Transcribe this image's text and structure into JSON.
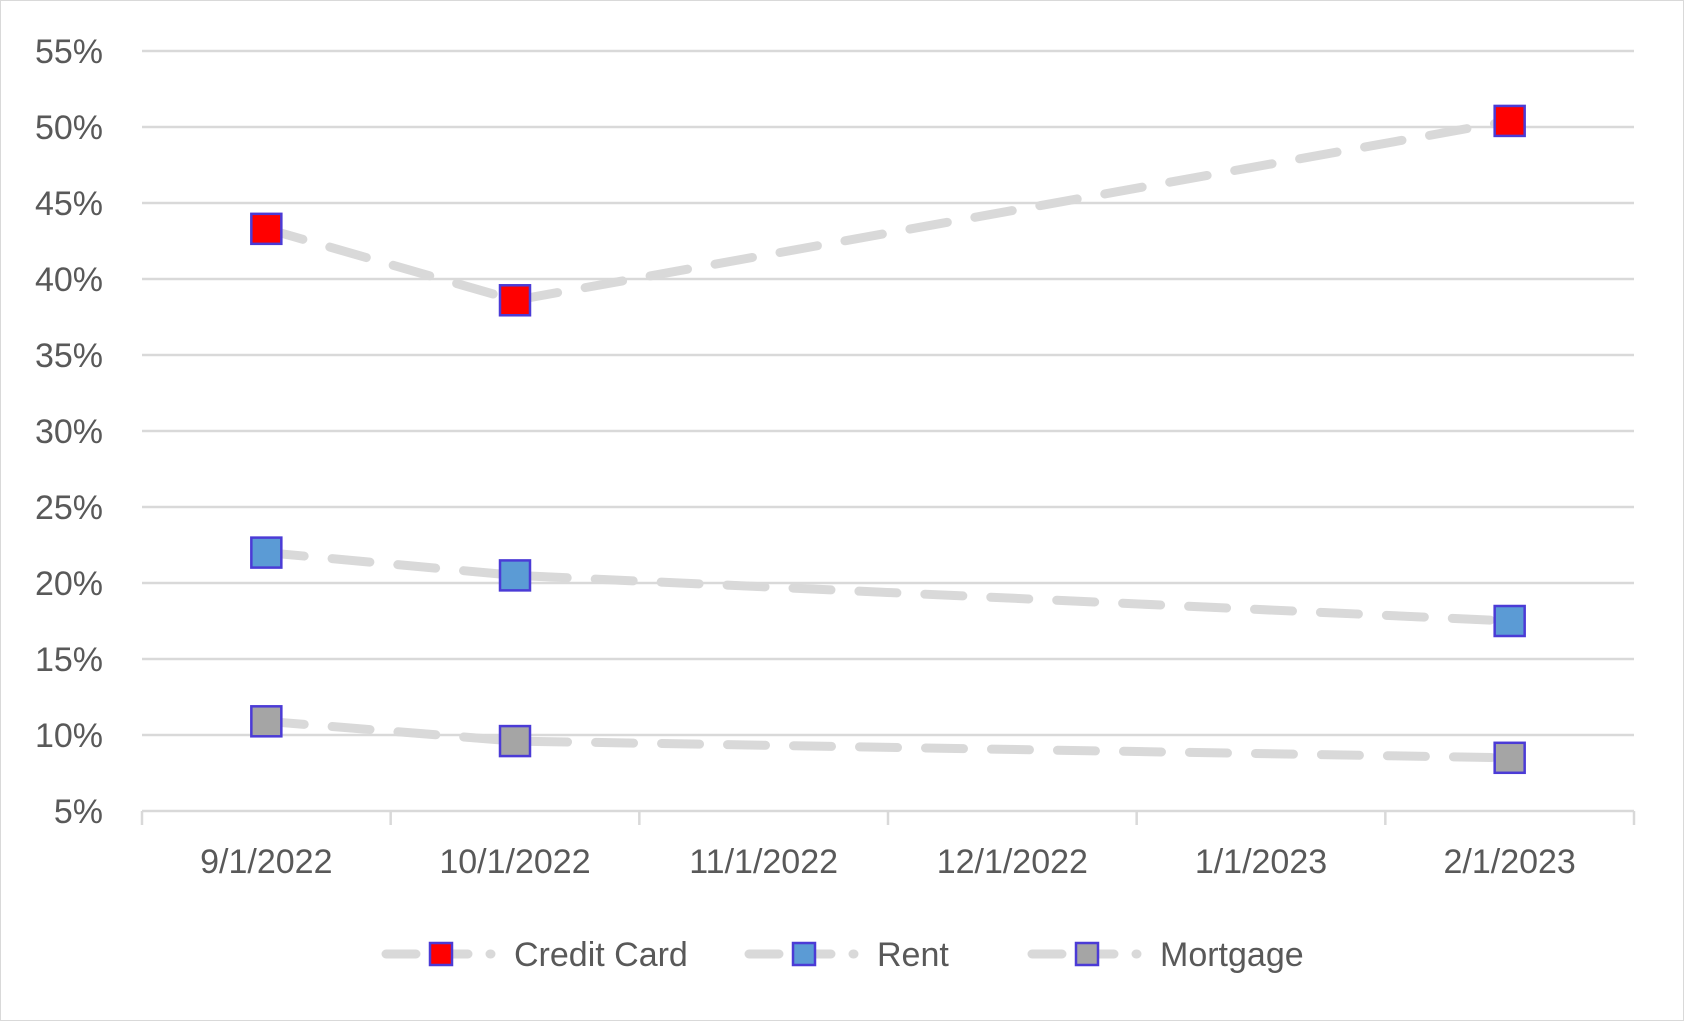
{
  "chart_data": {
    "type": "line",
    "x": [
      "9/1/2022",
      "10/1/2022",
      "2/1/2023"
    ],
    "x_axis_categories": [
      "9/1/2022",
      "10/1/2022",
      "11/1/2022",
      "12/1/2022",
      "1/1/2023",
      "2/1/2023"
    ],
    "y_tick_labels": [
      "5%",
      "10%",
      "15%",
      "20%",
      "25%",
      "30%",
      "35%",
      "40%",
      "45%",
      "50%",
      "55%"
    ],
    "ylim": [
      0.05,
      0.55
    ],
    "y_unit": "percent",
    "grid": true,
    "line_style": "dashed",
    "line_color": "#d9d9d9",
    "marker": "square",
    "marker_edge_color": "#4b3bd6",
    "legend_position": "bottom",
    "series": [
      {
        "name": "Credit Card",
        "color": "#ff0000",
        "values": [
          0.433,
          0.386,
          0.504
        ]
      },
      {
        "name": "Rent",
        "color": "#5b9bd5",
        "values": [
          0.22,
          0.205,
          0.175
        ]
      },
      {
        "name": "Mortgage",
        "color": "#a5a5a5",
        "values": [
          0.109,
          0.096,
          0.085
        ]
      }
    ],
    "title": "",
    "xlabel": "",
    "ylabel": ""
  }
}
